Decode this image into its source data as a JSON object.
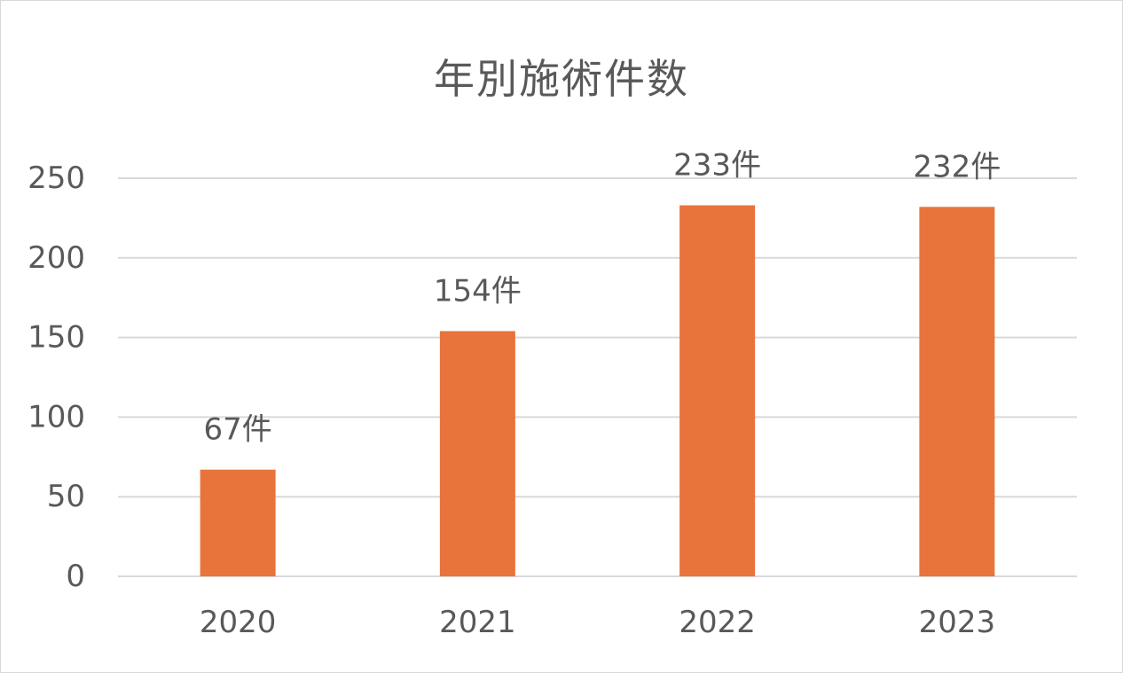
{
  "chart_data": {
    "type": "bar",
    "title": "年別施術件数",
    "categories": [
      "2020",
      "2021",
      "2022",
      "2023"
    ],
    "values": [
      67,
      154,
      233,
      232
    ],
    "data_labels": [
      "67件",
      "154件",
      "233件",
      "232件"
    ],
    "ylim": [
      0,
      250
    ],
    "yticks": [
      0,
      50,
      100,
      150,
      200,
      250
    ],
    "grid": true,
    "legend": "none",
    "bar_color": "#e8743b",
    "grid_color": "#d9d9d9",
    "text_color": "#595959"
  }
}
